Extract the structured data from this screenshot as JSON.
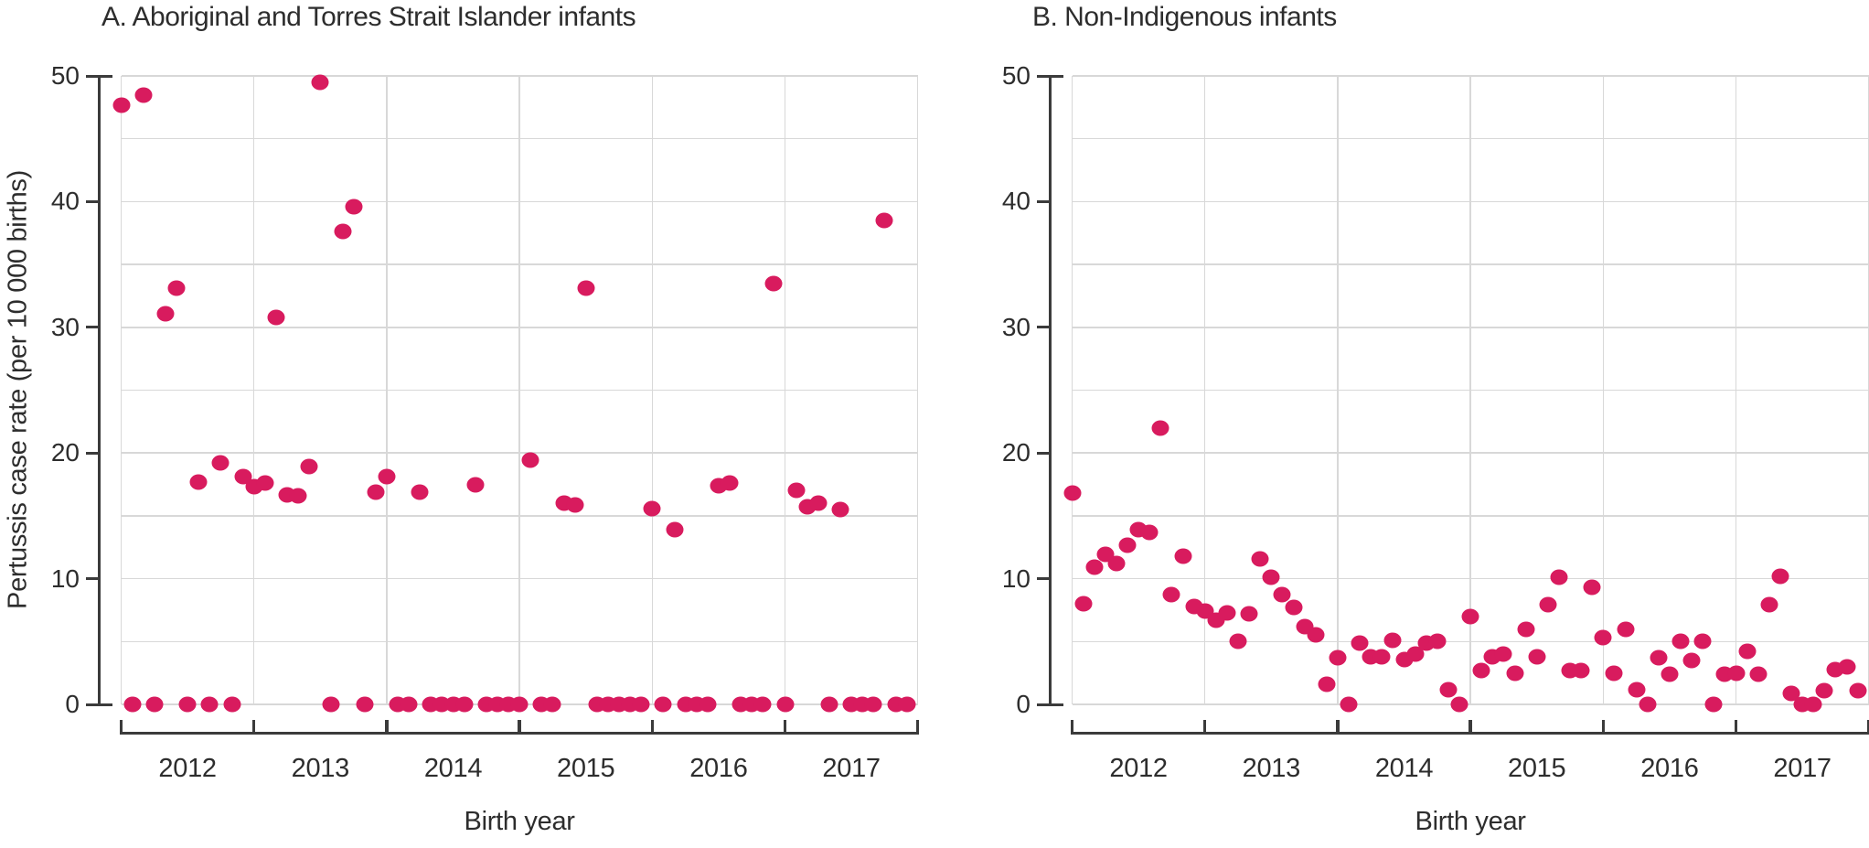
{
  "figure": {
    "background": "#ffffff",
    "text_color": "#2d2d2d",
    "axis_color": "#3b3b3b",
    "grid_color": "#d8d8d8",
    "point_color": "#d81b5e"
  },
  "chart_data": [
    {
      "id": "A",
      "type": "scatter",
      "title": "A. Aboriginal and Torres Strait Islander infants",
      "xlabel": "Birth year",
      "ylabel": "Pertussis case rate (per 10 000 births)",
      "x_tick_labels": [
        "2012",
        "2013",
        "2014",
        "2015",
        "2016",
        "2017"
      ],
      "y_tick_labels": [
        "0",
        "10",
        "20",
        "30",
        "40",
        "50"
      ],
      "ylim": [
        0,
        50
      ],
      "y_grid_step": 5,
      "x_start_month": "2012-01",
      "x_end_month": "2017-12",
      "points_per_year": 12,
      "legend": "none",
      "values": [
        47.7,
        0,
        48.5,
        0,
        31.1,
        33.1,
        0,
        17.7,
        0,
        19.2,
        0,
        18.1,
        17.3,
        17.6,
        30.8,
        16.7,
        16.6,
        18.9,
        49.5,
        0,
        37.6,
        39.6,
        0,
        16.9,
        18.1,
        0,
        0,
        16.9,
        0,
        0,
        0,
        0,
        17.5,
        0,
        0,
        0,
        0,
        19.4,
        0,
        0,
        16.0,
        15.9,
        33.1,
        0,
        0,
        0,
        0,
        0,
        15.6,
        0,
        13.9,
        0,
        0,
        0,
        17.4,
        17.6,
        0,
        0,
        0,
        33.5,
        0,
        17.0,
        15.7,
        16.0,
        0,
        15.5,
        0,
        0,
        0,
        38.5,
        0,
        0
      ]
    },
    {
      "id": "B",
      "type": "scatter",
      "title": "B. Non-Indigenous infants",
      "xlabel": "Birth year",
      "ylabel": "",
      "x_tick_labels": [
        "2012",
        "2013",
        "2014",
        "2015",
        "2016",
        "2017"
      ],
      "y_tick_labels": [
        "0",
        "10",
        "20",
        "30",
        "40",
        "50"
      ],
      "ylim": [
        0,
        50
      ],
      "y_grid_step": 5,
      "x_start_month": "2012-01",
      "x_end_month": "2017-12",
      "points_per_year": 12,
      "legend": "none",
      "values": [
        16.8,
        8.0,
        10.9,
        11.9,
        11.2,
        12.7,
        13.9,
        13.7,
        22.0,
        8.7,
        11.8,
        7.8,
        7.4,
        6.7,
        7.3,
        5.0,
        7.2,
        11.6,
        10.1,
        8.7,
        7.7,
        6.2,
        5.5,
        1.6,
        3.7,
        0,
        4.9,
        3.8,
        3.8,
        5.1,
        3.6,
        4.0,
        4.9,
        5.0,
        1.2,
        0,
        7.0,
        2.7,
        3.8,
        4.0,
        2.5,
        6.0,
        3.8,
        7.9,
        10.1,
        2.7,
        2.7,
        9.3,
        5.3,
        2.5,
        6.0,
        1.2,
        0,
        3.7,
        2.4,
        5.0,
        3.5,
        5.0,
        0,
        2.4,
        2.5,
        4.2,
        2.4,
        7.9,
        10.2,
        0.9,
        0,
        0,
        1.1,
        2.8,
        3.0,
        1.1
      ]
    }
  ]
}
